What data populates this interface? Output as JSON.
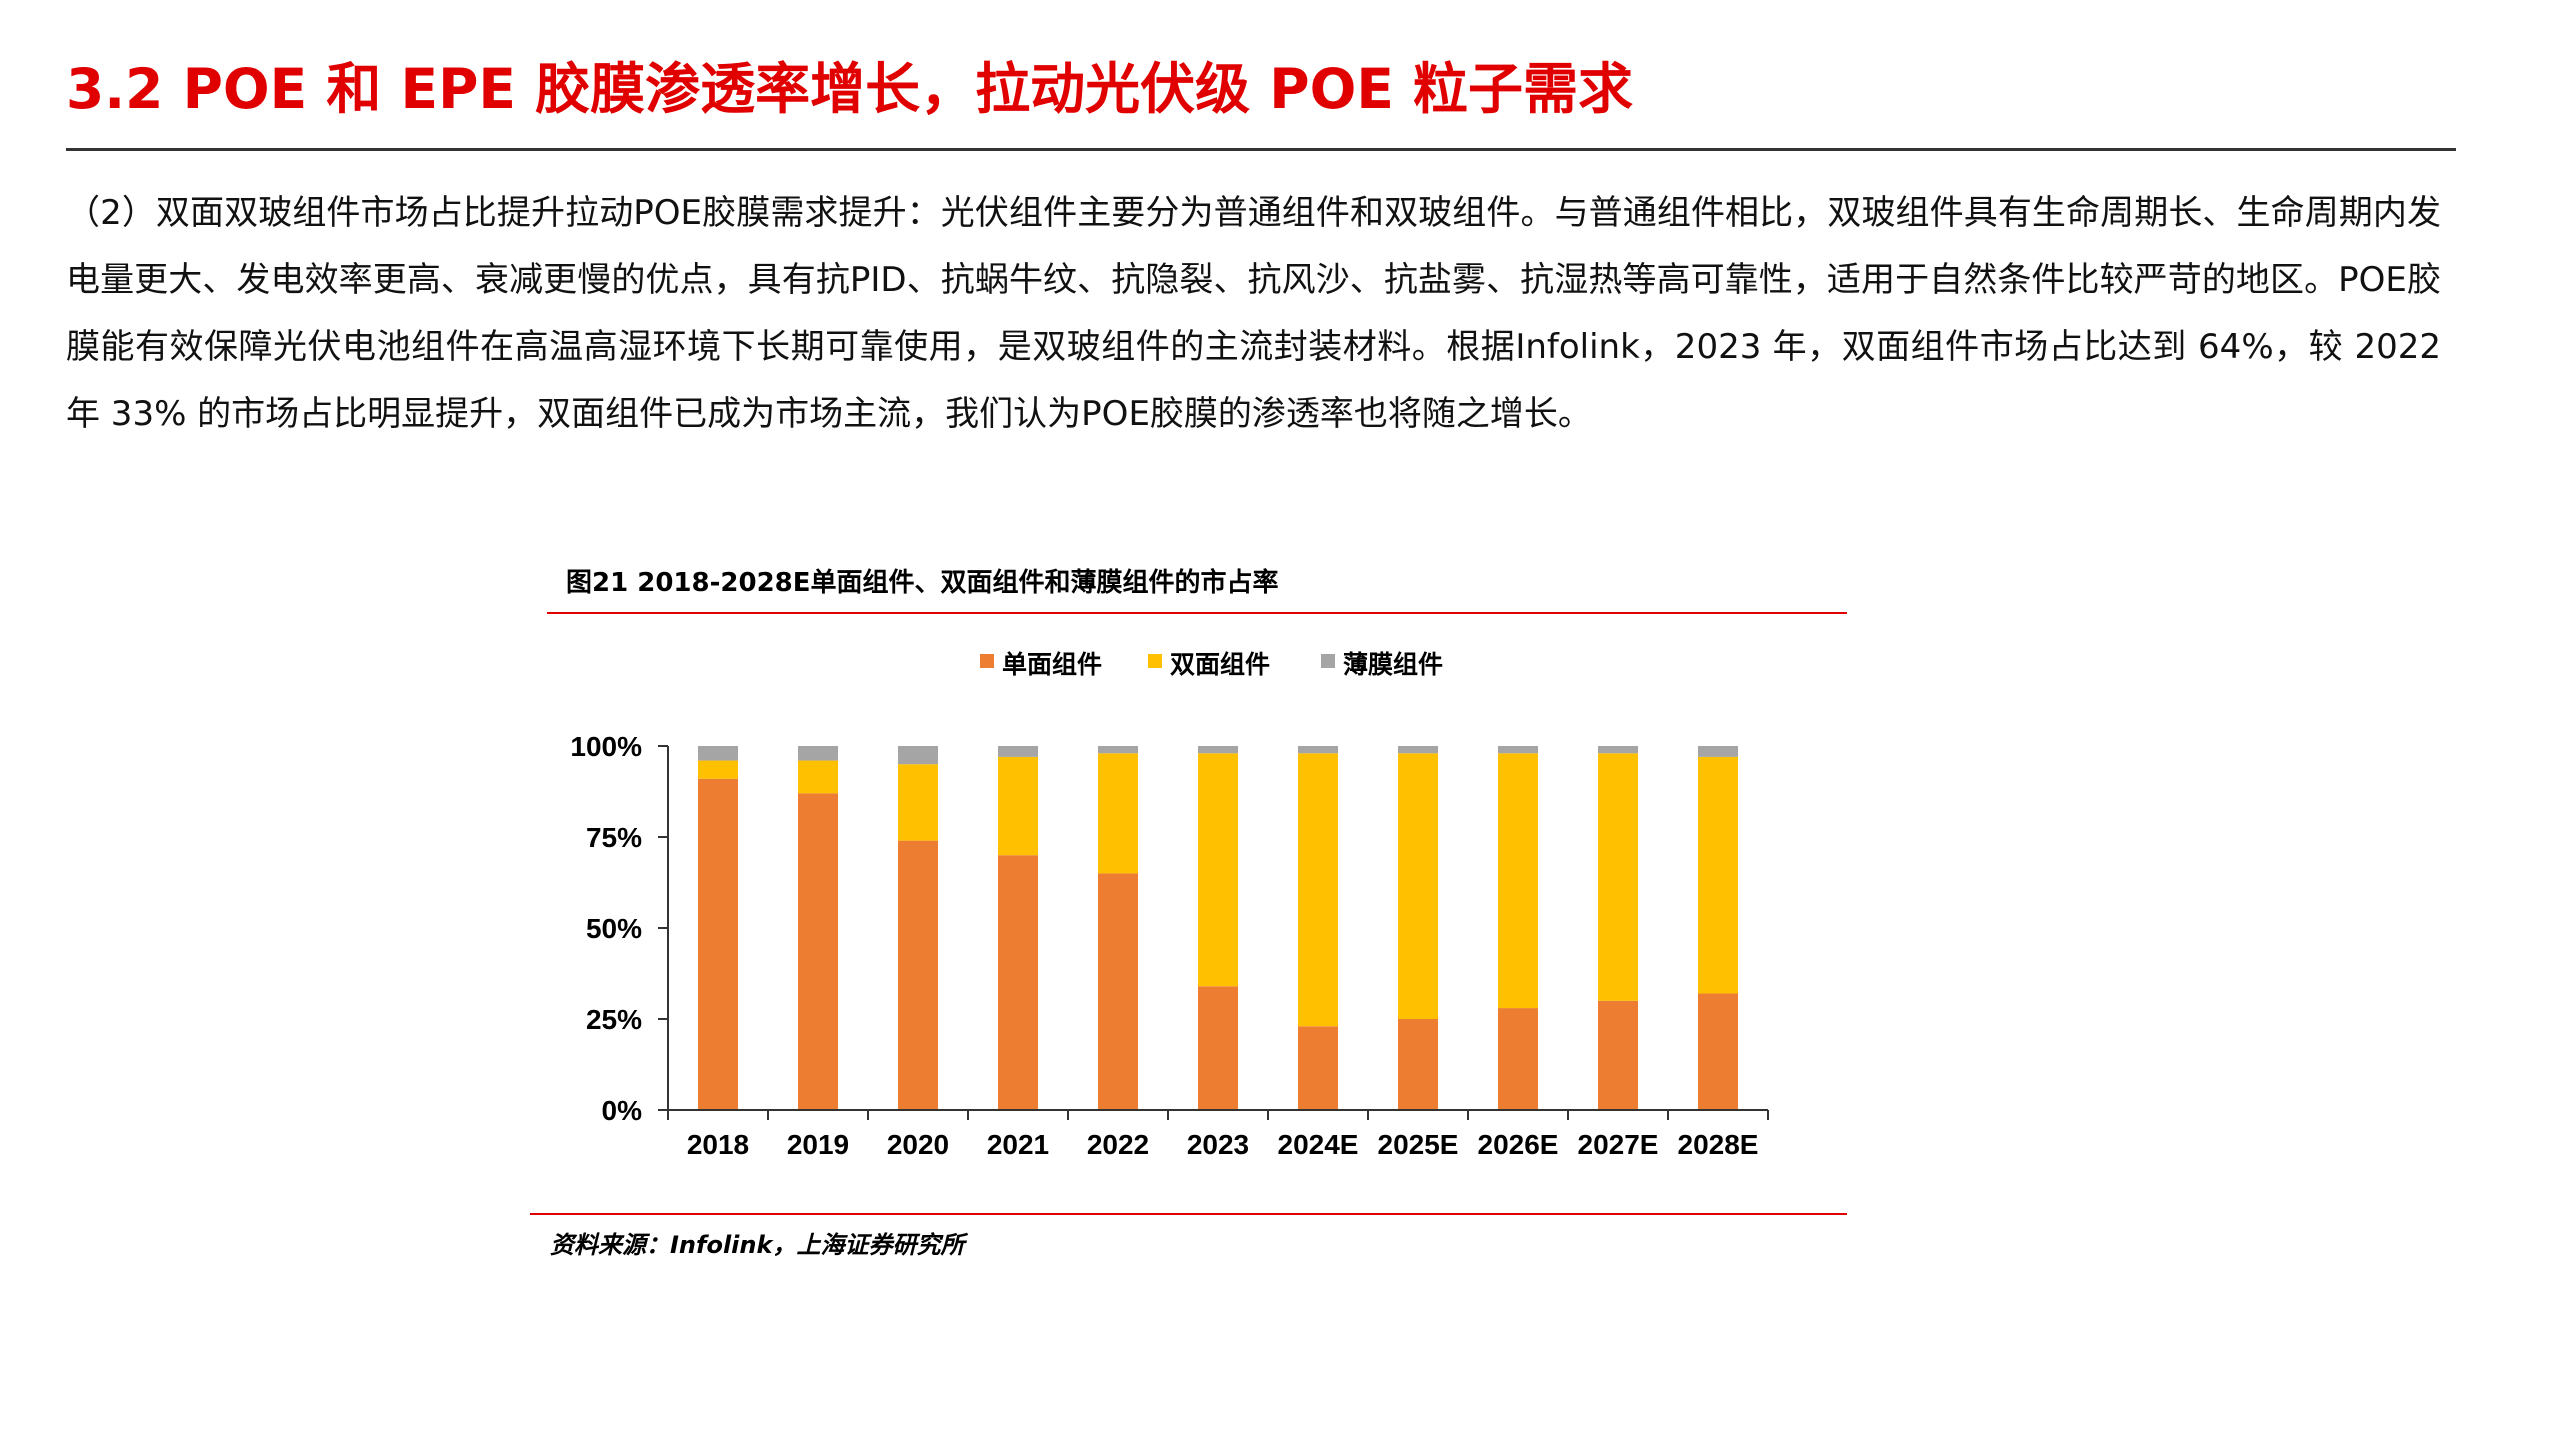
{
  "page": {
    "title": "3.2 POE 和 EPE 胶膜渗透率增长，拉动光伏级 POE 粒子需求",
    "paragraph": "（2）双面双玻组件市场占比提升拉动POE胶膜需求提升：光伏组件主要分为普通组件和双玻组件。与普通组件相比，双玻组件具有生命周期长、生命周期内发电量更大、发电效率更高、衰减更慢的优点，具有抗PID、抗蜗牛纹、抗隐裂、抗风沙、抗盐雾、抗湿热等高可靠性，适用于自然条件比较严苛的地区。POE胶膜能有效保障光伏电池组件在高温高湿环境下长期可靠使用，是双玻组件的主流封装材料。根据Infolink，2023 年，双面组件市场占比达到 64%，较 2022 年 33% 的市场占比明显提升，双面组件已成为市场主流，我们认为POE胶膜的渗透率也将随之增长。",
    "figure_caption": "图21  2018-2028E单面组件、双面组件和薄膜组件的市占率",
    "source_note": "资料来源：Infolink，上海证券研究所"
  },
  "colors": {
    "title_red": "#e00000",
    "rule_red": "#e00000",
    "mono": "#ed7d31",
    "bifacial": "#ffc000",
    "thinfilm": "#a5a5a5"
  },
  "chart_data": {
    "type": "bar",
    "stacked": true,
    "categories": [
      "2018",
      "2019",
      "2020",
      "2021",
      "2022",
      "2023",
      "2024E",
      "2025E",
      "2026E",
      "2027E",
      "2028E"
    ],
    "series": [
      {
        "name": "单面组件",
        "color": "#ed7d31",
        "values": [
          91,
          87,
          74,
          70,
          65,
          34,
          23,
          25,
          28,
          30,
          32
        ]
      },
      {
        "name": "双面组件",
        "color": "#ffc000",
        "values": [
          5,
          9,
          21,
          27,
          33,
          64,
          75,
          73,
          70,
          68,
          65
        ]
      },
      {
        "name": "薄膜组件",
        "color": "#a5a5a5",
        "values": [
          4,
          4,
          5,
          3,
          2,
          2,
          2,
          2,
          2,
          2,
          3
        ]
      }
    ],
    "ylim": [
      0,
      100
    ],
    "yticks": [
      "0%",
      "25%",
      "50%",
      "75%",
      "100%"
    ],
    "ytick_values": [
      0,
      25,
      50,
      75,
      100
    ],
    "legend_position": "top-center",
    "grid": false
  }
}
